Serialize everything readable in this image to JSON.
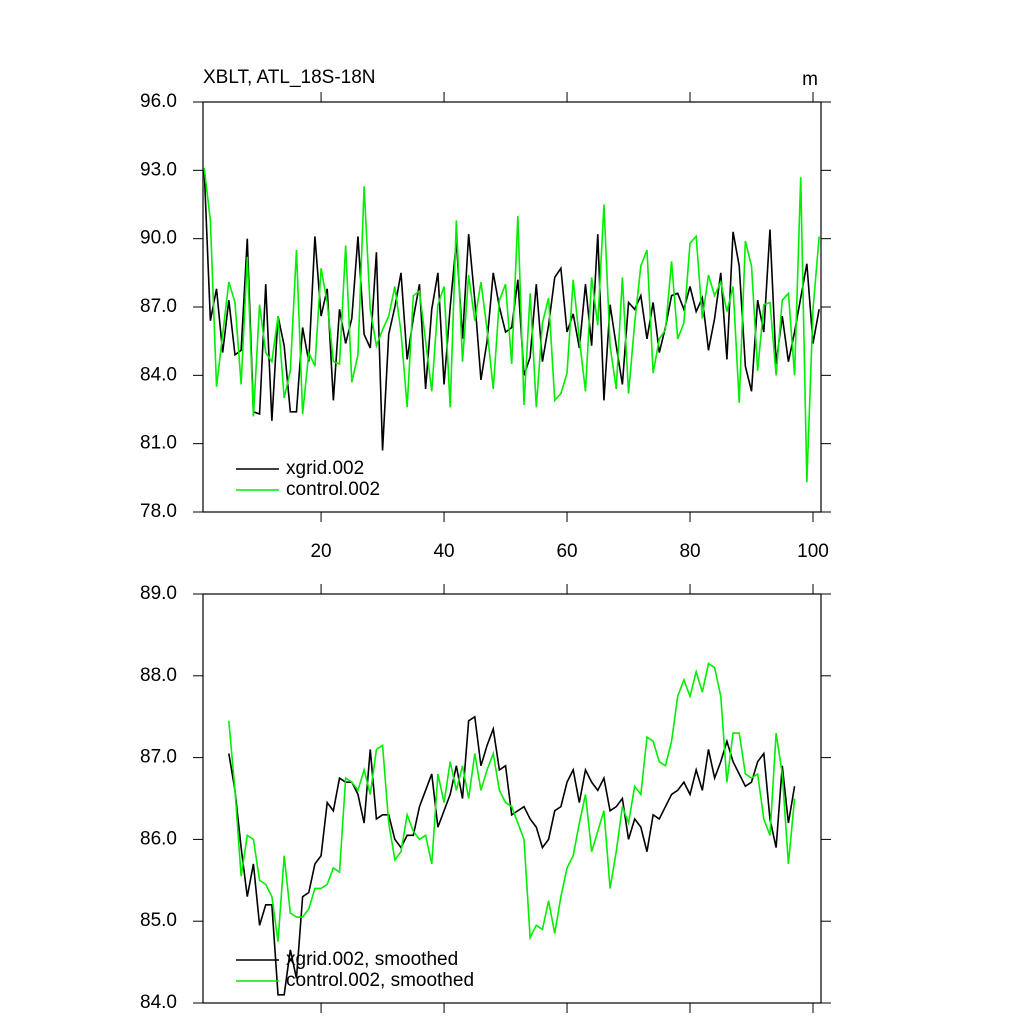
{
  "chart_data": [
    {
      "type": "line",
      "title": "XBLT, ATL_18S-18N",
      "units": "m",
      "x": [
        1,
        2,
        3,
        4,
        5,
        6,
        7,
        8,
        9,
        10,
        11,
        12,
        13,
        14,
        15,
        16,
        17,
        18,
        19,
        20,
        21,
        22,
        23,
        24,
        25,
        26,
        27,
        28,
        29,
        30,
        31,
        32,
        33,
        34,
        35,
        36,
        37,
        38,
        39,
        40,
        41,
        42,
        43,
        44,
        45,
        46,
        47,
        48,
        49,
        50,
        51,
        52,
        53,
        54,
        55,
        56,
        57,
        58,
        59,
        60,
        61,
        62,
        63,
        64,
        65,
        66,
        67,
        68,
        69,
        70,
        71,
        72,
        73,
        74,
        75,
        76,
        77,
        78,
        79,
        80,
        81,
        82,
        83,
        84,
        85,
        86,
        87,
        88,
        89,
        90,
        91,
        92,
        93,
        94,
        95,
        96,
        97,
        98,
        99,
        100,
        101
      ],
      "series": [
        {
          "name": "xgrid.002",
          "color": "#000000",
          "values": [
            93.0,
            86.4,
            87.8,
            85.0,
            87.3,
            84.9,
            85.1,
            90.0,
            82.4,
            82.3,
            88.0,
            82.0,
            86.6,
            85.3,
            82.4,
            82.4,
            86.1,
            84.6,
            90.1,
            86.6,
            87.8,
            82.9,
            86.9,
            85.4,
            86.5,
            90.1,
            85.8,
            85.2,
            89.4,
            80.7,
            85.8,
            87.0,
            88.5,
            84.7,
            86.5,
            88.0,
            83.4,
            86.9,
            88.5,
            83.6,
            87.0,
            89.9,
            85.6,
            90.2,
            87.3,
            83.8,
            85.5,
            88.5,
            87.0,
            85.9,
            86.1,
            88.2,
            84.0,
            84.8,
            88.0,
            84.6,
            86.2,
            88.3,
            88.7,
            85.9,
            86.7,
            85.2,
            88.0,
            85.3,
            90.2,
            82.9,
            87.1,
            85.3,
            83.6,
            87.2,
            86.9,
            87.5,
            85.6,
            87.2,
            85.0,
            86.1,
            87.5,
            87.6,
            86.9,
            87.9,
            86.8,
            87.4,
            85.1,
            86.5,
            88.5,
            84.7,
            90.3,
            88.8,
            84.4,
            83.3,
            87.3,
            85.9,
            90.4,
            84.5,
            86.6,
            84.6,
            85.9,
            87.4,
            88.9,
            85.4,
            86.9
          ]
        },
        {
          "name": "control.002",
          "color": "#00ee00",
          "values": [
            93.1,
            90.8,
            83.5,
            85.8,
            88.1,
            87.2,
            83.6,
            89.2,
            82.2,
            87.1,
            85.0,
            84.6,
            86.6,
            83.0,
            84.2,
            89.5,
            82.3,
            85.0,
            84.4,
            88.7,
            87.2,
            84.6,
            84.5,
            89.7,
            83.7,
            84.9,
            92.3,
            86.9,
            85.3,
            86.0,
            86.6,
            87.9,
            85.9,
            82.6,
            87.5,
            87.7,
            85.5,
            83.3,
            87.1,
            87.9,
            82.6,
            90.8,
            84.6,
            88.4,
            86.4,
            88.1,
            86.0,
            83.4,
            87.3,
            88.0,
            84.5,
            91.0,
            82.7,
            87.6,
            82.6,
            86.3,
            87.4,
            82.9,
            83.2,
            84.1,
            88.2,
            85.6,
            83.3,
            88.3,
            86.2,
            91.5,
            85.3,
            83.4,
            88.3,
            83.2,
            86.3,
            88.8,
            89.5,
            84.1,
            85.6,
            86.0,
            89.0,
            85.6,
            86.3,
            89.8,
            90.1,
            86.5,
            88.4,
            87.5,
            88.1,
            86.8,
            87.9,
            82.8,
            89.9,
            88.8,
            84.2,
            87.1,
            87.2,
            84.0,
            87.3,
            87.6,
            84.0,
            92.7,
            79.3,
            86.9,
            90.1
          ]
        }
      ],
      "xlim": [
        0.8,
        101.3
      ],
      "xticks": [
        20,
        40,
        60,
        80,
        100
      ],
      "show_xtick_labels": true,
      "ylim": [
        78,
        96
      ],
      "yticks": [
        {
          "value": 78,
          "label": "78.0"
        },
        {
          "value": 81,
          "label": "81.0"
        },
        {
          "value": 84,
          "label": "84.0"
        },
        {
          "value": 87,
          "label": "87.0"
        },
        {
          "value": 90,
          "label": "90.0"
        },
        {
          "value": 93,
          "label": "93.0"
        },
        {
          "value": 96,
          "label": "96.0"
        }
      ],
      "grid": false,
      "legend": "lower left"
    },
    {
      "type": "line",
      "x": [
        5,
        6,
        7,
        8,
        9,
        10,
        11,
        12,
        13,
        14,
        15,
        16,
        17,
        18,
        19,
        20,
        21,
        22,
        23,
        24,
        25,
        26,
        27,
        28,
        29,
        30,
        31,
        32,
        33,
        34,
        35,
        36,
        37,
        38,
        39,
        40,
        41,
        42,
        43,
        44,
        45,
        46,
        47,
        48,
        49,
        50,
        51,
        52,
        53,
        54,
        55,
        56,
        57,
        58,
        59,
        60,
        61,
        62,
        63,
        64,
        65,
        66,
        67,
        68,
        69,
        70,
        71,
        72,
        73,
        74,
        75,
        76,
        77,
        78,
        79,
        80,
        81,
        82,
        83,
        84,
        85,
        86,
        87,
        88,
        89,
        90,
        91,
        92,
        93,
        94,
        95,
        96,
        97
      ],
      "series": [
        {
          "name": "xgrid.002, smoothed",
          "color": "#000000",
          "values": [
            87.05,
            86.6,
            85.9,
            85.3,
            85.7,
            84.95,
            85.2,
            85.2,
            84.1,
            84.1,
            84.65,
            84.3,
            85.3,
            85.35,
            85.7,
            85.8,
            86.45,
            86.35,
            86.75,
            86.7,
            86.7,
            86.55,
            86.2,
            87.1,
            86.25,
            86.3,
            86.3,
            86.0,
            85.9,
            86.05,
            86.05,
            86.4,
            86.6,
            86.8,
            86.15,
            86.35,
            86.55,
            86.9,
            86.5,
            87.45,
            87.5,
            86.9,
            87.15,
            87.35,
            86.85,
            86.9,
            86.3,
            86.35,
            86.4,
            86.25,
            86.15,
            85.9,
            86.0,
            86.35,
            86.4,
            86.7,
            86.85,
            86.45,
            86.85,
            86.7,
            86.6,
            86.75,
            86.35,
            86.4,
            86.5,
            86.0,
            86.25,
            86.15,
            85.85,
            86.3,
            86.25,
            86.4,
            86.55,
            86.6,
            86.7,
            86.55,
            86.85,
            86.6,
            87.1,
            86.75,
            86.95,
            87.2,
            86.95,
            86.8,
            86.65,
            86.7,
            86.95,
            87.05,
            86.25,
            85.9,
            86.9,
            86.2,
            86.65
          ]
        },
        {
          "name": "control.002, smoothed",
          "color": "#00ee00",
          "values": [
            87.45,
            86.6,
            85.55,
            86.05,
            86.0,
            85.5,
            85.45,
            85.3,
            84.75,
            85.8,
            85.1,
            85.05,
            85.05,
            85.15,
            85.4,
            85.4,
            85.45,
            85.65,
            85.6,
            86.75,
            86.7,
            86.6,
            86.85,
            86.55,
            87.1,
            87.15,
            86.2,
            85.75,
            85.85,
            86.3,
            86.1,
            86.0,
            86.05,
            85.7,
            86.8,
            86.45,
            86.95,
            86.6,
            86.9,
            86.5,
            87.05,
            86.6,
            86.85,
            87.05,
            86.6,
            86.45,
            86.4,
            86.2,
            86.0,
            84.8,
            84.95,
            84.9,
            85.25,
            84.85,
            85.3,
            85.65,
            85.8,
            86.2,
            86.55,
            85.85,
            86.1,
            86.35,
            85.4,
            85.85,
            86.4,
            86.2,
            86.65,
            86.55,
            87.25,
            87.2,
            86.95,
            86.9,
            87.2,
            87.75,
            87.95,
            87.75,
            88.05,
            87.8,
            88.15,
            88.1,
            87.75,
            86.7,
            87.3,
            87.3,
            86.8,
            86.75,
            86.8,
            86.25,
            86.05,
            87.3,
            86.8,
            85.7,
            86.5
          ]
        }
      ],
      "xlim": [
        0.8,
        101.3
      ],
      "xticks": [
        20,
        40,
        60,
        80,
        100
      ],
      "show_xtick_labels": false,
      "ylim": [
        84,
        89
      ],
      "yticks": [
        {
          "value": 84,
          "label": "84.0"
        },
        {
          "value": 85,
          "label": "85.0"
        },
        {
          "value": 86,
          "label": "86.0"
        },
        {
          "value": 87,
          "label": "87.0"
        },
        {
          "value": 88,
          "label": "88.0"
        },
        {
          "value": 89,
          "label": "89.0"
        }
      ],
      "grid": false,
      "legend": "lower left"
    }
  ]
}
